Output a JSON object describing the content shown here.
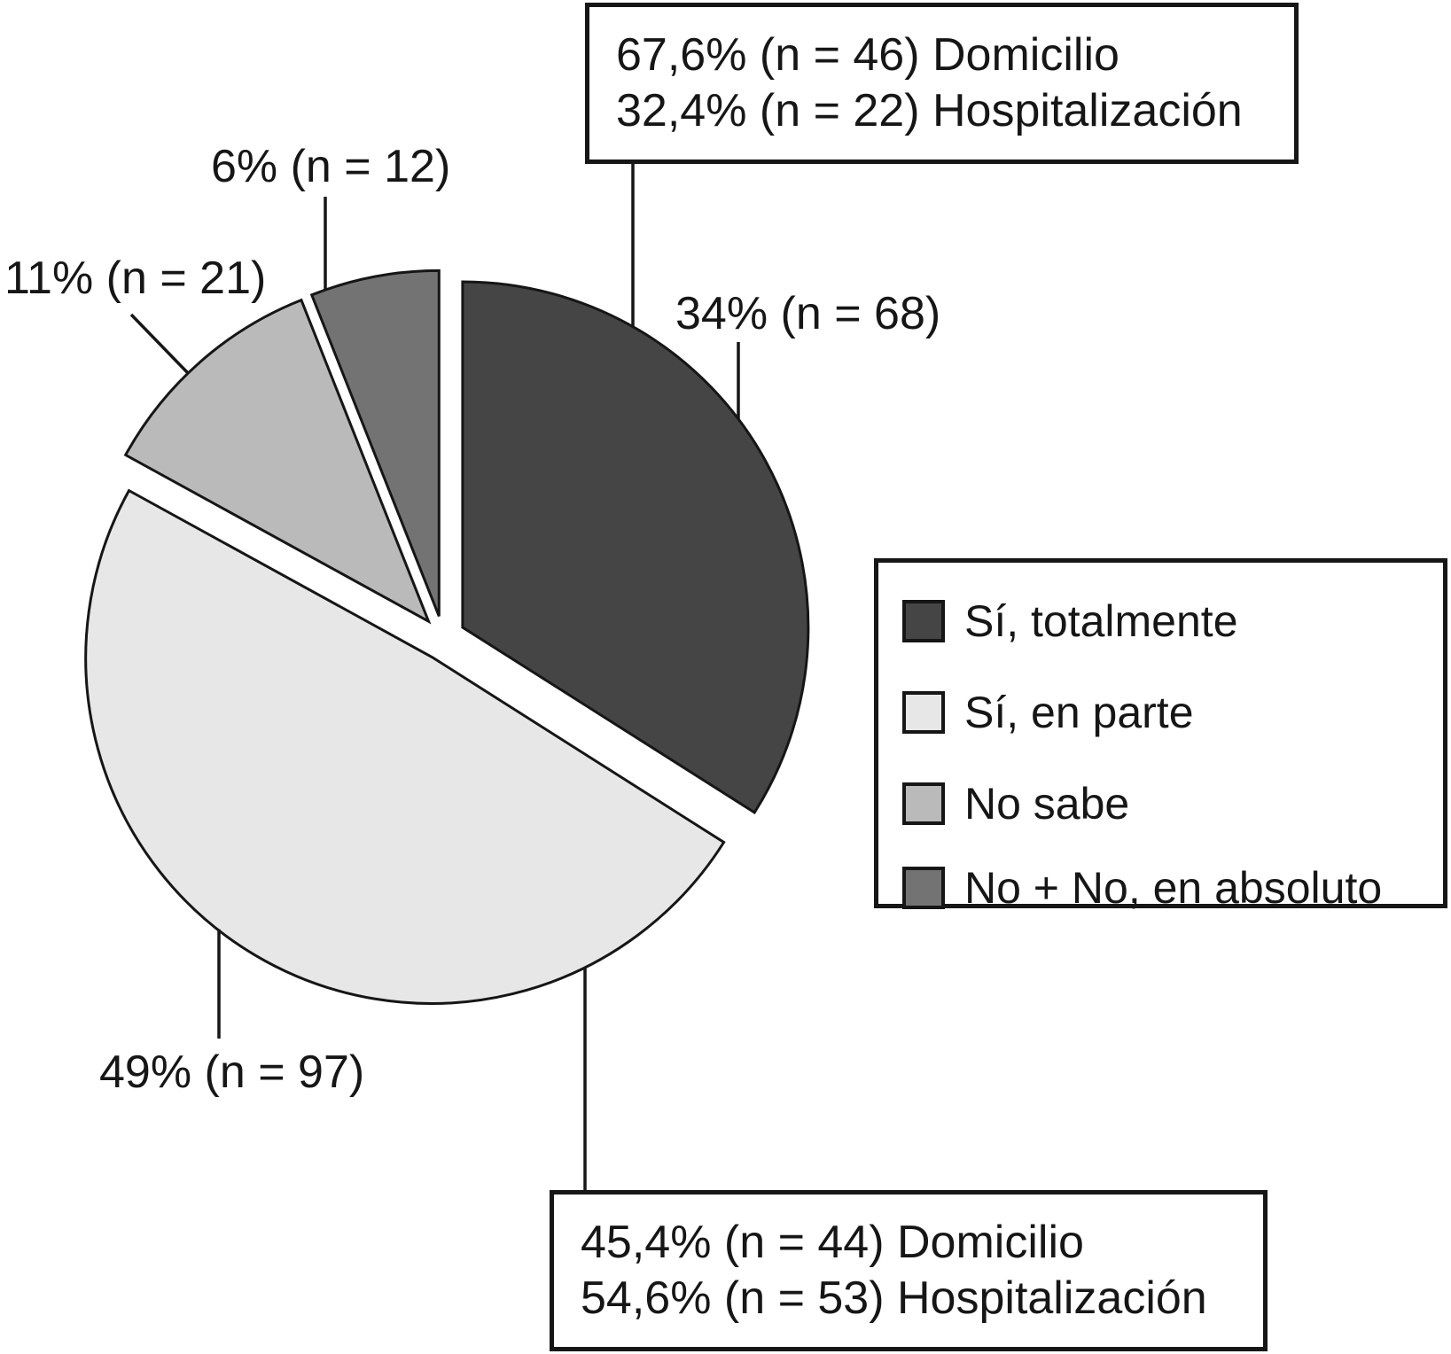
{
  "chart_data": {
    "type": "pie",
    "unit": "%",
    "start_angle_deg": 0,
    "direction": "clockwise",
    "exploded": true,
    "grid": false,
    "legend_position": "right",
    "outline_color": "#161616",
    "background_color": "#ffffff",
    "slices": [
      {
        "label": "Sí, totalmente",
        "percent": 34,
        "n": 68,
        "callout": "34% (n = 68)",
        "color": "#454545"
      },
      {
        "label": "Sí, en parte",
        "percent": 49,
        "n": 97,
        "callout": "49% (n = 97)",
        "color": "#e7e7e7"
      },
      {
        "label": "No sabe",
        "percent": 11,
        "n": 21,
        "callout": "11% (n = 21)",
        "color": "#bababa"
      },
      {
        "label": "No + No, en absoluto",
        "percent": 6,
        "n": 12,
        "callout": "6% (n = 12)",
        "color": "#737373"
      }
    ],
    "annotations": [
      {
        "target_slice": "Sí, totalmente",
        "lines": [
          "67,6% (n = 46) Domicilio",
          "32,4% (n = 22) Hospitalización"
        ]
      },
      {
        "target_slice": "Sí, en parte",
        "lines": [
          "45,4% (n = 44) Domicilio",
          "54,6% (n = 53) Hospitalización"
        ]
      }
    ]
  }
}
